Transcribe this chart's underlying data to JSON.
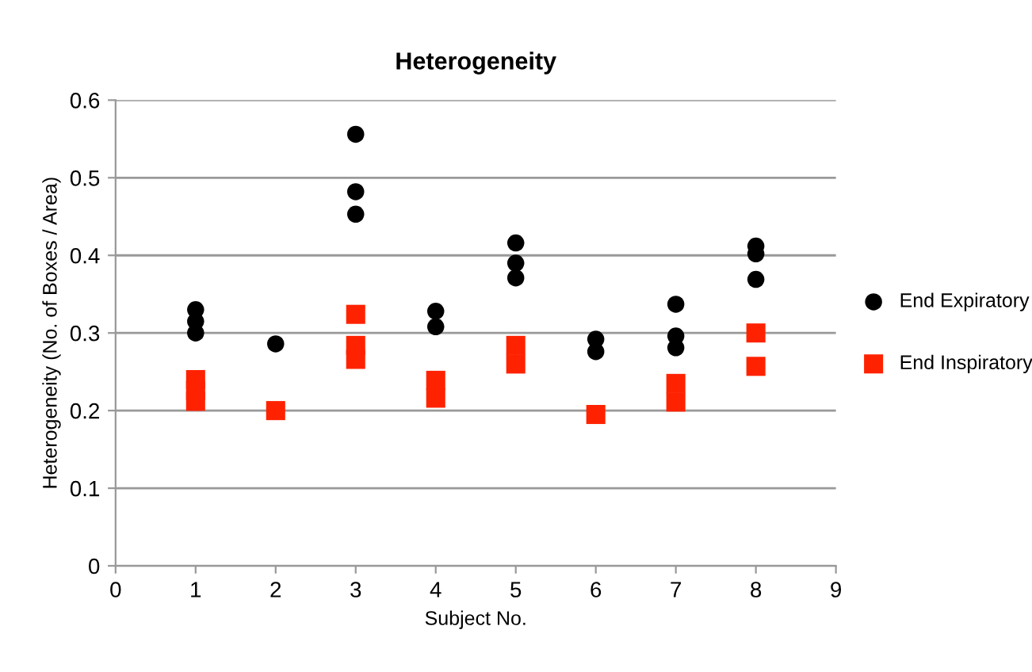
{
  "chart_data": {
    "type": "scatter",
    "title": "Heterogeneity",
    "xlabel": "Subject No.",
    "ylabel": "Heterogeneity (No. of Boxes / Area)",
    "xlim": [
      0,
      9
    ],
    "xticks": [
      0,
      1,
      2,
      3,
      4,
      5,
      6,
      7,
      8,
      9
    ],
    "ylim": [
      0,
      0.6
    ],
    "yticks": [
      0,
      0.1,
      0.2,
      0.3,
      0.4,
      0.5,
      0.6
    ],
    "grid": "y",
    "legend": "right",
    "series": [
      {
        "name": "End Expiratory",
        "color": "#000000",
        "marker": "circle",
        "x": [
          1,
          1,
          1,
          2,
          3,
          3,
          3,
          4,
          4,
          5,
          5,
          5,
          6,
          6,
          7,
          7,
          7,
          8,
          8,
          8
        ],
        "values": [
          0.33,
          0.315,
          0.3,
          0.286,
          0.556,
          0.482,
          0.453,
          0.328,
          0.308,
          0.416,
          0.39,
          0.371,
          0.292,
          0.276,
          0.337,
          0.296,
          0.281,
          0.412,
          0.402,
          0.369
        ]
      },
      {
        "name": "End Inspiratory",
        "color": "#ff2200",
        "marker": "square",
        "x": [
          1,
          1,
          1,
          2,
          3,
          3,
          3,
          4,
          4,
          5,
          5,
          6,
          7,
          7,
          8,
          8
        ],
        "values": [
          0.24,
          0.226,
          0.212,
          0.2,
          0.324,
          0.284,
          0.266,
          0.239,
          0.216,
          0.284,
          0.26,
          0.195,
          0.235,
          0.211,
          0.3,
          0.257
        ]
      }
    ]
  }
}
